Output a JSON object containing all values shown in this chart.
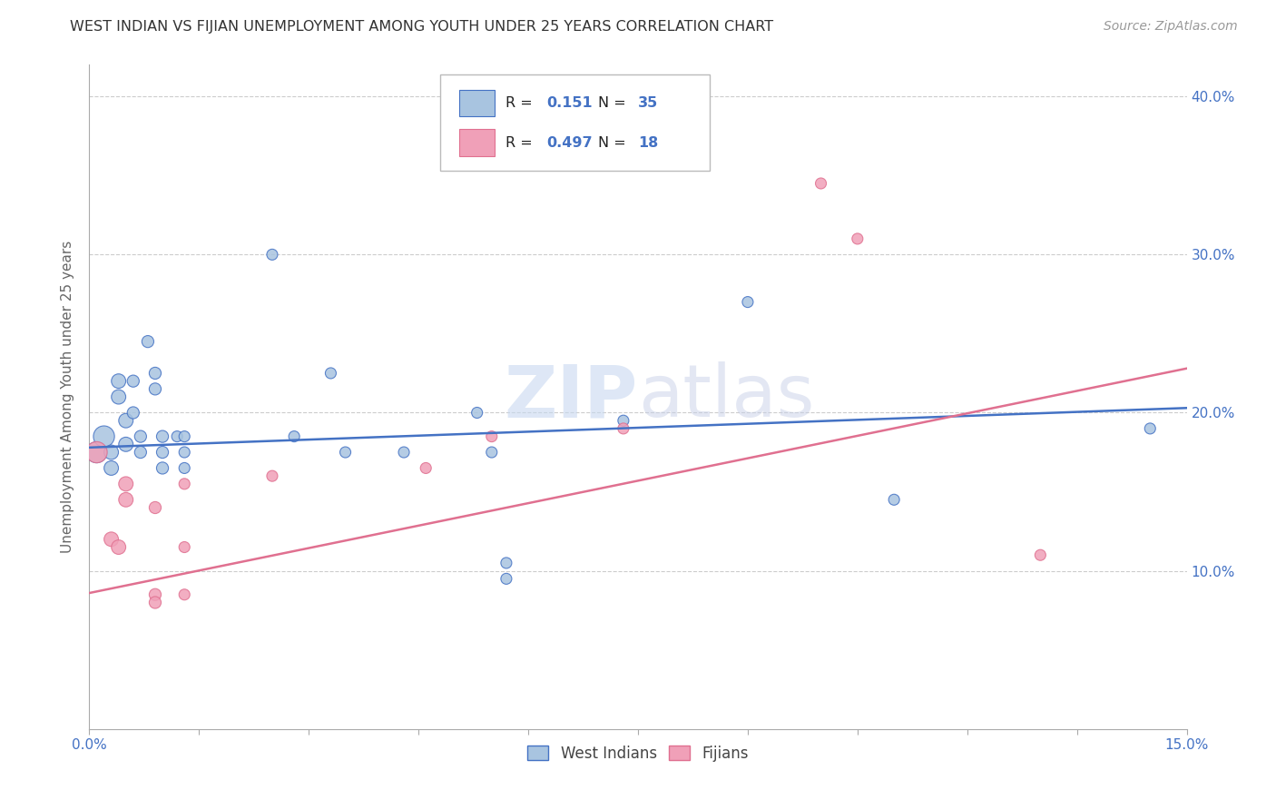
{
  "title": "WEST INDIAN VS FIJIAN UNEMPLOYMENT AMONG YOUTH UNDER 25 YEARS CORRELATION CHART",
  "source": "Source: ZipAtlas.com",
  "ylabel": "Unemployment Among Youth under 25 years",
  "R1": "0.151",
  "N1": "35",
  "R2": "0.497",
  "N2": "18",
  "xlim": [
    0.0,
    0.15
  ],
  "ylim": [
    0.0,
    0.42
  ],
  "xtick_vals": [
    0.0,
    0.15
  ],
  "yticks": [
    0.1,
    0.2,
    0.3,
    0.4
  ],
  "color_blue": "#a8c4e0",
  "color_pink": "#f0a0b8",
  "line_blue": "#4472c4",
  "line_pink": "#e07090",
  "background": "#ffffff",
  "watermark": "ZIPatlas",
  "blue_points": [
    [
      0.001,
      0.175
    ],
    [
      0.002,
      0.185
    ],
    [
      0.003,
      0.175
    ],
    [
      0.003,
      0.165
    ],
    [
      0.004,
      0.22
    ],
    [
      0.004,
      0.21
    ],
    [
      0.005,
      0.195
    ],
    [
      0.005,
      0.18
    ],
    [
      0.006,
      0.22
    ],
    [
      0.006,
      0.2
    ],
    [
      0.007,
      0.185
    ],
    [
      0.007,
      0.175
    ],
    [
      0.008,
      0.245
    ],
    [
      0.009,
      0.225
    ],
    [
      0.009,
      0.215
    ],
    [
      0.01,
      0.185
    ],
    [
      0.01,
      0.175
    ],
    [
      0.01,
      0.165
    ],
    [
      0.012,
      0.185
    ],
    [
      0.013,
      0.185
    ],
    [
      0.013,
      0.175
    ],
    [
      0.013,
      0.165
    ],
    [
      0.025,
      0.3
    ],
    [
      0.028,
      0.185
    ],
    [
      0.033,
      0.225
    ],
    [
      0.035,
      0.175
    ],
    [
      0.043,
      0.175
    ],
    [
      0.053,
      0.2
    ],
    [
      0.055,
      0.175
    ],
    [
      0.057,
      0.105
    ],
    [
      0.057,
      0.095
    ],
    [
      0.073,
      0.195
    ],
    [
      0.09,
      0.27
    ],
    [
      0.11,
      0.145
    ],
    [
      0.145,
      0.19
    ]
  ],
  "pink_points": [
    [
      0.001,
      0.175
    ],
    [
      0.003,
      0.12
    ],
    [
      0.004,
      0.115
    ],
    [
      0.005,
      0.155
    ],
    [
      0.005,
      0.145
    ],
    [
      0.009,
      0.14
    ],
    [
      0.009,
      0.085
    ],
    [
      0.009,
      0.08
    ],
    [
      0.013,
      0.155
    ],
    [
      0.013,
      0.115
    ],
    [
      0.013,
      0.085
    ],
    [
      0.025,
      0.16
    ],
    [
      0.046,
      0.165
    ],
    [
      0.055,
      0.185
    ],
    [
      0.073,
      0.19
    ],
    [
      0.1,
      0.345
    ],
    [
      0.105,
      0.31
    ],
    [
      0.13,
      0.11
    ]
  ],
  "blue_line_x": [
    0.0,
    0.15
  ],
  "blue_line_y": [
    0.178,
    0.203
  ],
  "pink_line_x": [
    0.0,
    0.15
  ],
  "pink_line_y": [
    0.086,
    0.228
  ]
}
